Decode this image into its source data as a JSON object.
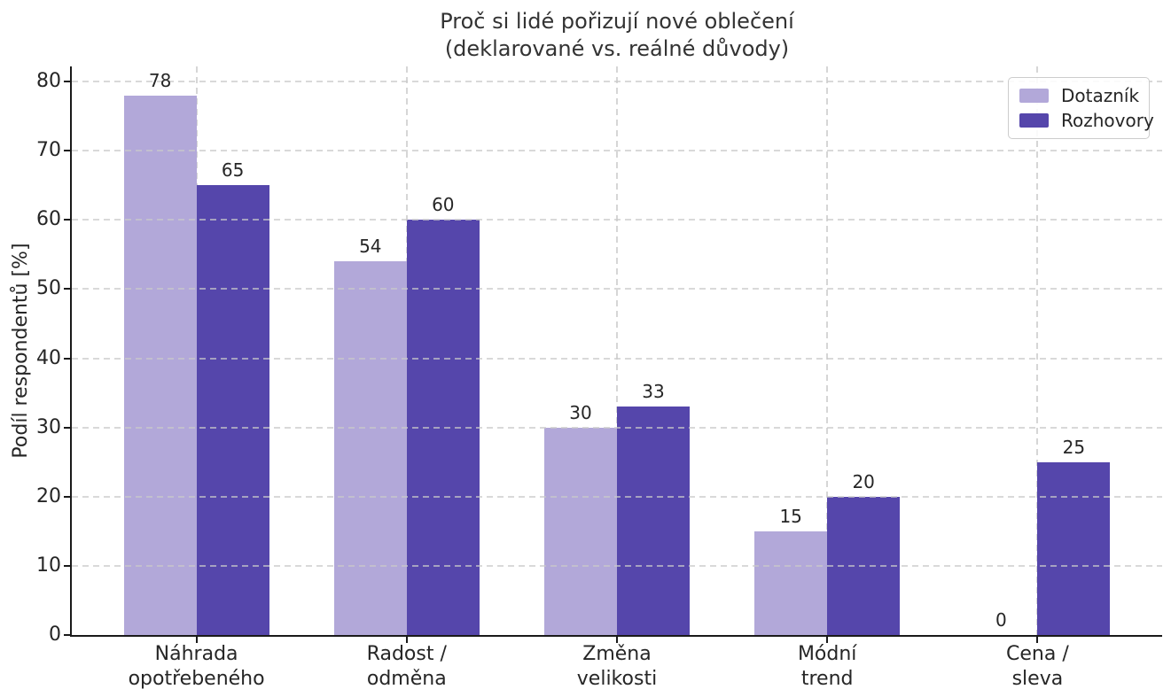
{
  "chart_data": {
    "type": "bar",
    "title": "Proč si lidé pořizují nové oblečení",
    "subtitle": "(deklarované vs. reálné důvody)",
    "xlabel": "",
    "ylabel": "Podíl respondentů [%]",
    "categories": [
      "Náhrada opotřebeného",
      "Radost / odměna",
      "Změna velikosti",
      "Módní trend",
      "Cena / sleva"
    ],
    "category_label_lines": [
      [
        "Náhrada",
        "opotřebeného"
      ],
      [
        "Radost /",
        "odměna"
      ],
      [
        "Změna",
        "velikosti"
      ],
      [
        "Módní",
        "trend"
      ],
      [
        "Cena /",
        "sleva"
      ]
    ],
    "series": [
      {
        "name": "Dotazník",
        "color": "#b2a8d9",
        "values": [
          78,
          54,
          30,
          15,
          0
        ]
      },
      {
        "name": "Rozhovory",
        "color": "#5546ab",
        "values": [
          65,
          60,
          33,
          20,
          25
        ]
      }
    ],
    "bar_value_labels": true,
    "yticks": [
      0,
      10,
      20,
      30,
      40,
      50,
      60,
      70,
      80
    ],
    "ylim": [
      0,
      82
    ],
    "grid": "dashed horizontal and vertical at category centers",
    "legend_position": "upper right",
    "colors": {
      "background": "#ffffff",
      "grid": "#c9c9c9",
      "spine": "#1a1a1a",
      "text": "#262626",
      "title": "#333333",
      "legend_border": "#cccccc"
    }
  }
}
